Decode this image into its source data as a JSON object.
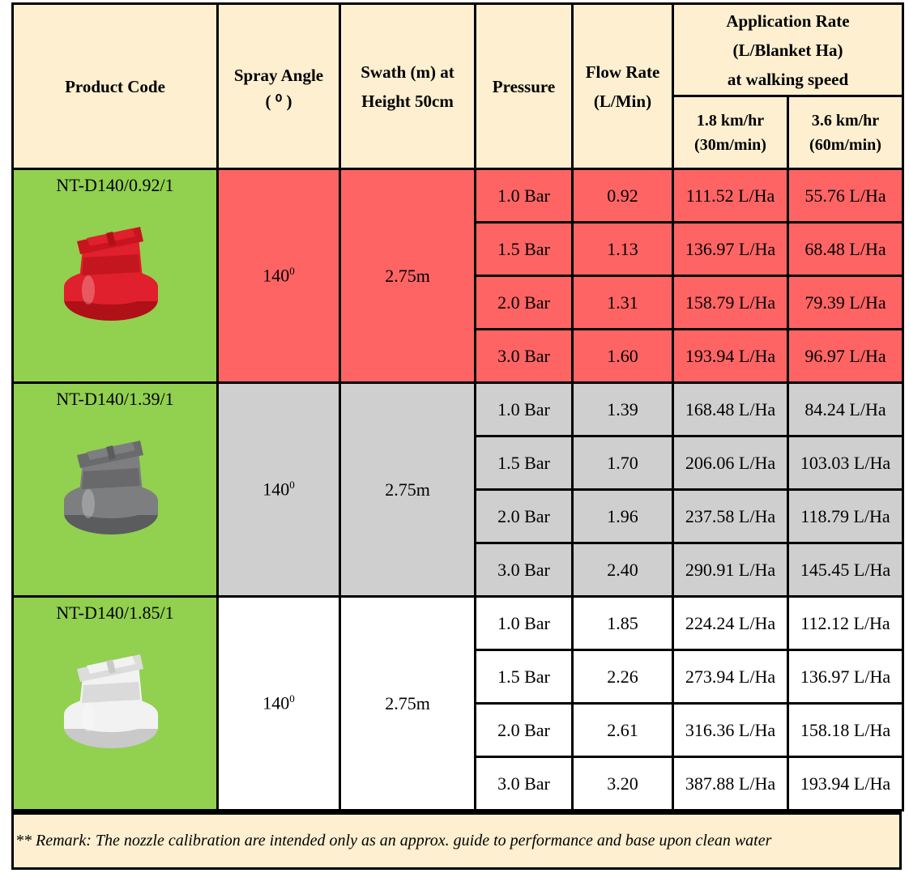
{
  "headers": {
    "product_code": "Product Code",
    "spray_angle_line1": "Spray Angle",
    "spray_angle_line2": "( ⁰ )",
    "swath_line1": "Swath (m) at",
    "swath_line2": "Height 50cm",
    "pressure": "Pressure",
    "flow_line1": "Flow Rate",
    "flow_line2": "(L/Min)",
    "app_rate_line1": "Application Rate",
    "app_rate_line2": "(L/Blanket Ha)",
    "app_rate_line3": "at walking speed",
    "speed1_line1": "1.8 km/hr",
    "speed1_line2": "(30m/min)",
    "speed2_line1": "3.6 km/hr",
    "speed2_line2": "(60m/min)"
  },
  "colors": {
    "header_bg": "#fdefcf",
    "code_bg": "#92d050",
    "red_row": "#ff6464",
    "grey_row": "#d0cfcf",
    "white_row": "#ffffff",
    "nozzle_red": "#e0202c",
    "nozzle_grey": "#7d7e80",
    "nozzle_white": "#f2f2f2"
  },
  "products": [
    {
      "code": "NT-D140/0.92/1",
      "nozzle_icon": "red-nozzle",
      "angle": "140",
      "angle_sup": "0",
      "swath": "2.75m",
      "rows": [
        {
          "pressure": "1.0 Bar",
          "flow": "0.92",
          "rate1": "111.52 L/Ha",
          "rate2": "55.76 L/Ha"
        },
        {
          "pressure": "1.5 Bar",
          "flow": "1.13",
          "rate1": "136.97 L/Ha",
          "rate2": "68.48 L/Ha"
        },
        {
          "pressure": "2.0 Bar",
          "flow": "1.31",
          "rate1": "158.79 L/Ha",
          "rate2": "79.39 L/Ha"
        },
        {
          "pressure": "3.0 Bar",
          "flow": "1.60",
          "rate1": "193.94 L/Ha",
          "rate2": "96.97 L/Ha"
        }
      ]
    },
    {
      "code": "NT-D140/1.39/1",
      "nozzle_icon": "grey-nozzle",
      "angle": "140",
      "angle_sup": "0",
      "swath": "2.75m",
      "rows": [
        {
          "pressure": "1.0 Bar",
          "flow": "1.39",
          "rate1": "168.48 L/Ha",
          "rate2": "84.24 L/Ha"
        },
        {
          "pressure": "1.5 Bar",
          "flow": "1.70",
          "rate1": "206.06 L/Ha",
          "rate2": "103.03 L/Ha"
        },
        {
          "pressure": "2.0 Bar",
          "flow": "1.96",
          "rate1": "237.58 L/Ha",
          "rate2": "118.79 L/Ha"
        },
        {
          "pressure": "3.0 Bar",
          "flow": "2.40",
          "rate1": "290.91 L/Ha",
          "rate2": "145.45 L/Ha"
        }
      ]
    },
    {
      "code": "NT-D140/1.85/1",
      "nozzle_icon": "white-nozzle",
      "angle": "140",
      "angle_sup": "0",
      "swath": "2.75m",
      "rows": [
        {
          "pressure": "1.0 Bar",
          "flow": "1.85",
          "rate1": "224.24 L/Ha",
          "rate2": "112.12 L/Ha"
        },
        {
          "pressure": "1.5 Bar",
          "flow": "2.26",
          "rate1": "273.94 L/Ha",
          "rate2": "136.97 L/Ha"
        },
        {
          "pressure": "2.0 Bar",
          "flow": "2.61",
          "rate1": "316.36 L/Ha",
          "rate2": "158.18 L/Ha"
        },
        {
          "pressure": "3.0 Bar",
          "flow": "3.20",
          "rate1": "387.88 L/Ha",
          "rate2": "193.94 L/Ha"
        }
      ]
    }
  ],
  "remark": "** Remark: The nozzle calibration are intended only as an approx. guide to performance and base upon clean water"
}
